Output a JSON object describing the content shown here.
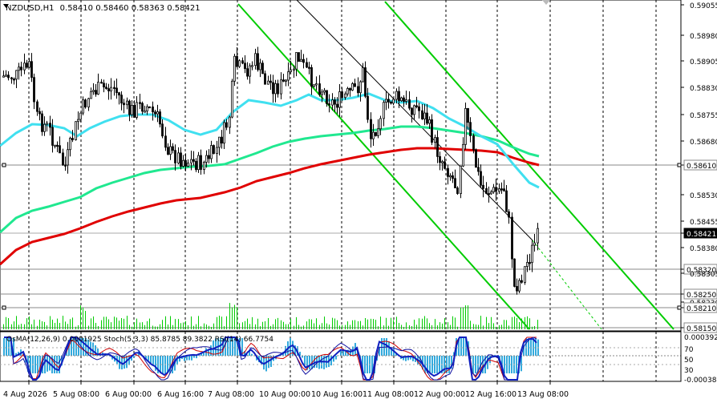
{
  "main_chart": {
    "symbol_label": "NZDUSD,H1",
    "ohlc_label": "0.58410 0.58460 0.58363 0.58421",
    "price_axis_labels": [
      "0.59055",
      "0.58980",
      "0.58905",
      "0.58830",
      "0.58755",
      "0.58680",
      "0.58610",
      "0.58530",
      "0.58455",
      "0.58421",
      "0.58380",
      "0.58320",
      "0.58305",
      "0.58250",
      "0.58230",
      "0.58210",
      "0.58150"
    ],
    "highlighted_labels": [
      "0.58610",
      "0.58421",
      "0.58320",
      "0.58250",
      "0.58210",
      "0.58150"
    ],
    "current_price": "0.58421"
  },
  "indicator_panel": {
    "label": "OsMA(12,26,9) 0.0001925 Stoch(5,3,3) 85.8785 89.3822 RSI(14) 66.7754",
    "axis_labels": [
      "0.000392",
      "70",
      "50",
      "30",
      "-0.00038"
    ]
  },
  "time_axis": {
    "labels": [
      "4 Aug 2026",
      "5 Aug 08:00",
      "6 Aug 00:00",
      "6 Aug 16:00",
      "7 Aug 08:00",
      "10 Aug 00:00",
      "10 Aug 16:00",
      "11 Aug 08:00",
      "12 Aug 00:00",
      "12 Aug 16:00",
      "13 Aug 08:00"
    ]
  },
  "colors": {
    "background": "#ffffff",
    "candles": "#000000",
    "ma_fast": "#40e0f0",
    "ma_mid": "#20e890",
    "ma_slow": "#e00000",
    "channel_lines": "#00cc00",
    "trend_line": "#000000",
    "volume": "#00cc00",
    "osma_histogram": "#33aadd",
    "stoch_main": "#1010a0",
    "stoch_signal": "#d00000",
    "rsi_line": "#8800aa",
    "grid": "#000000"
  }
}
